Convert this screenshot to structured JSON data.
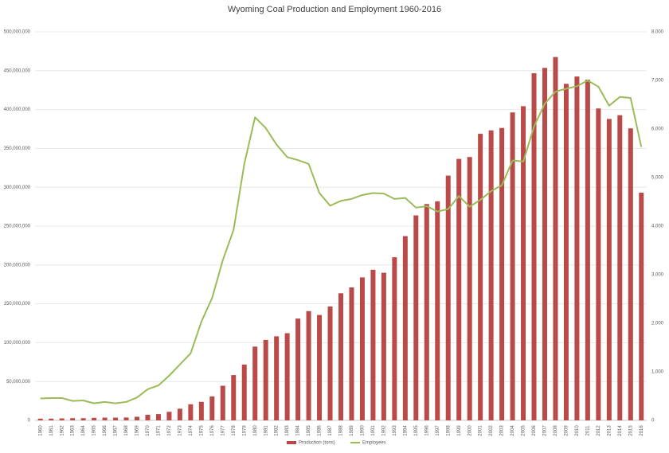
{
  "chart_data": {
    "type": "bar",
    "title": "Wyoming Coal Production and Employment 1960-2016",
    "categories": [
      "1960",
      "1961",
      "1962",
      "1963",
      "1964",
      "1965",
      "1966",
      "1967",
      "1968",
      "1969",
      "1970",
      "1971",
      "1972",
      "1973",
      "1974",
      "1975",
      "1976",
      "1977",
      "1978",
      "1979",
      "1980",
      "1981",
      "1982",
      "1983",
      "1984",
      "1985",
      "1986",
      "1987",
      "1988",
      "1989",
      "1990",
      "1991",
      "1992",
      "1993",
      "1994",
      "1995",
      "1996",
      "1997",
      "1998",
      "1999",
      "2000",
      "2001",
      "2002",
      "2003",
      "2004",
      "2005",
      "2006",
      "2007",
      "2008",
      "2009",
      "2010",
      "2011",
      "2012",
      "2013",
      "2014",
      "2015",
      "2016"
    ],
    "series": [
      {
        "name": "Production (tons)",
        "type": "bar",
        "color": "#b94a48",
        "values": [
          2200000,
          2200000,
          2500000,
          2800000,
          2800000,
          3300000,
          3500000,
          3500000,
          3700000,
          4600000,
          7200000,
          8100000,
          11000000,
          15000000,
          20700000,
          23800000,
          30800000,
          44500000,
          58300000,
          71800000,
          94900000,
          103600000,
          108200000,
          112200000,
          131000000,
          140600000,
          135600000,
          146600000,
          163600000,
          171100000,
          184000000,
          193800000,
          190000000,
          209900000,
          237100000,
          263800000,
          278400000,
          281900000,
          315000000,
          336500000,
          338900000,
          368800000,
          373200000,
          376300000,
          396300000,
          404300000,
          446700000,
          453600000,
          467600000,
          433100000,
          442500000,
          438500000,
          401400000,
          387900000,
          392700000,
          375800000,
          293000000
        ]
      },
      {
        "name": "Employees",
        "type": "line",
        "axis": "y2",
        "color": "#9bbb59",
        "values": [
          450,
          460,
          460,
          400,
          410,
          350,
          380,
          350,
          380,
          470,
          640,
          720,
          920,
          1150,
          1380,
          2030,
          2520,
          3300,
          3920,
          5280,
          6240,
          6020,
          5680,
          5420,
          5360,
          5280,
          4680,
          4420,
          4520,
          4560,
          4640,
          4680,
          4670,
          4560,
          4580,
          4380,
          4410,
          4300,
          4350,
          4620,
          4400,
          4540,
          4720,
          4840,
          5350,
          5330,
          6050,
          6520,
          6770,
          6830,
          6880,
          7000,
          6870,
          6480,
          6660,
          6640,
          5630
        ]
      }
    ],
    "ylim": [
      0,
      500000000
    ],
    "yticks": [
      0,
      {
        "value": 50000000,
        "label": "50,000,000"
      },
      {
        "value": 100000000,
        "label": "100,000,000"
      },
      {
        "value": 150000000,
        "label": "150,000,000"
      },
      {
        "value": 200000000,
        "label": "200,000,000"
      },
      {
        "value": 250000000,
        "label": "250,000,000"
      },
      {
        "value": 300000000,
        "label": "300,000,000"
      },
      {
        "value": 350000000,
        "label": "350,000,000"
      },
      {
        "value": 400000000,
        "label": "400,000,000"
      },
      {
        "value": 450000000,
        "label": "450,000,000"
      },
      {
        "value": 500000000,
        "label": "500,000,000"
      }
    ],
    "y2lim": [
      0,
      8000
    ],
    "y2ticks": [
      0,
      {
        "value": 1000,
        "label": "1,000"
      },
      {
        "value": 2000,
        "label": "2,000"
      },
      {
        "value": 3000,
        "label": "3,000"
      },
      {
        "value": 4000,
        "label": "4,000"
      },
      {
        "value": 5000,
        "label": "5,000"
      },
      {
        "value": 6000,
        "label": "6,000"
      },
      {
        "value": 7000,
        "label": "7,000"
      },
      {
        "value": 8000,
        "label": "8,000"
      }
    ],
    "grid": true,
    "legend": "bottom"
  }
}
